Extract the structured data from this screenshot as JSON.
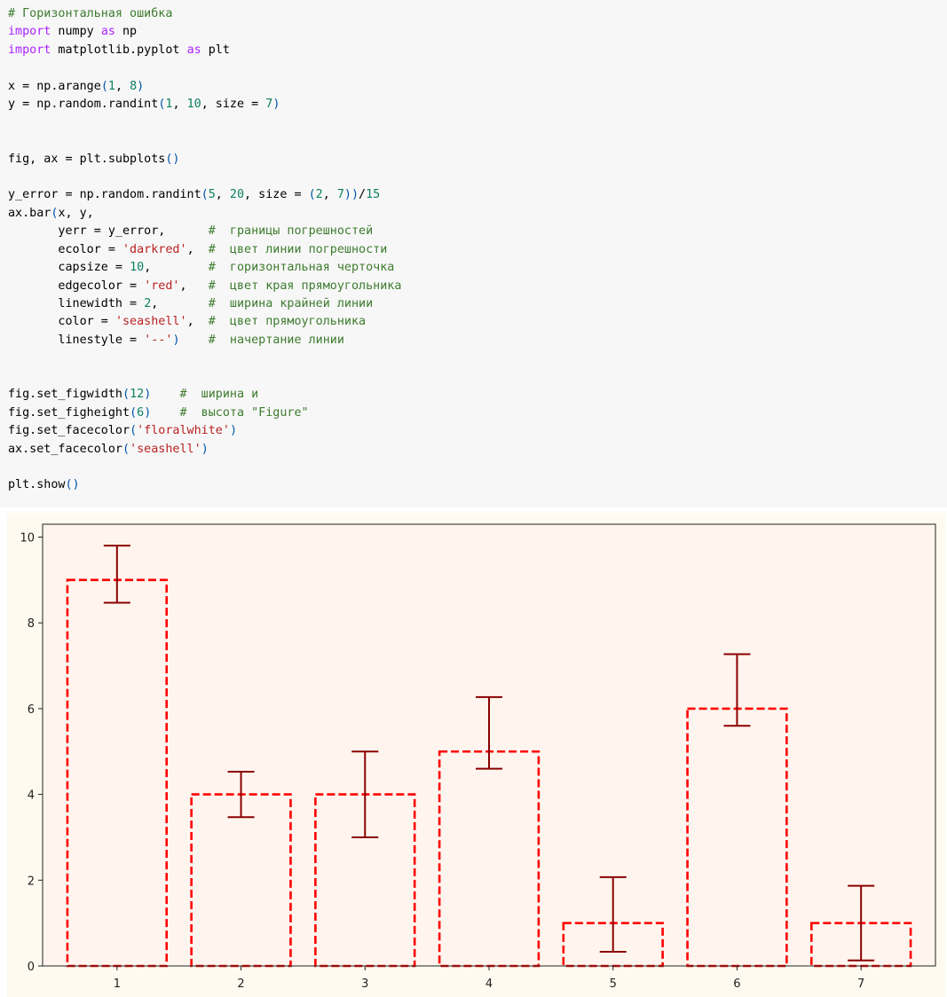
{
  "code_cell": {
    "lines": [
      [
        {
          "t": "# Горизонтальная ошибка",
          "c": "comment"
        }
      ],
      [
        {
          "t": "import",
          "c": "keyword"
        },
        {
          "t": " numpy ",
          "c": "plain"
        },
        {
          "t": "as",
          "c": "keyword"
        },
        {
          "t": " np",
          "c": "plain"
        }
      ],
      [
        {
          "t": "import",
          "c": "keyword"
        },
        {
          "t": " matplotlib.pyplot ",
          "c": "plain"
        },
        {
          "t": "as",
          "c": "keyword"
        },
        {
          "t": " plt",
          "c": "plain"
        }
      ],
      [],
      [
        {
          "t": "x = np.arange",
          "c": "plain"
        },
        {
          "t": "(",
          "c": "paren"
        },
        {
          "t": "1",
          "c": "number"
        },
        {
          "t": ", ",
          "c": "plain"
        },
        {
          "t": "8",
          "c": "number"
        },
        {
          "t": ")",
          "c": "paren"
        }
      ],
      [
        {
          "t": "y = np.random.randint",
          "c": "plain"
        },
        {
          "t": "(",
          "c": "paren"
        },
        {
          "t": "1",
          "c": "number"
        },
        {
          "t": ", ",
          "c": "plain"
        },
        {
          "t": "10",
          "c": "number"
        },
        {
          "t": ", size = ",
          "c": "plain"
        },
        {
          "t": "7",
          "c": "number"
        },
        {
          "t": ")",
          "c": "paren"
        }
      ],
      [],
      [],
      [
        {
          "t": "fig, ax = plt.subplots",
          "c": "plain"
        },
        {
          "t": "()",
          "c": "paren"
        }
      ],
      [],
      [
        {
          "t": "y_error = np.random.randint",
          "c": "plain"
        },
        {
          "t": "(",
          "c": "paren"
        },
        {
          "t": "5",
          "c": "number"
        },
        {
          "t": ", ",
          "c": "plain"
        },
        {
          "t": "20",
          "c": "number"
        },
        {
          "t": ", size = ",
          "c": "plain"
        },
        {
          "t": "(",
          "c": "paren"
        },
        {
          "t": "2",
          "c": "number"
        },
        {
          "t": ", ",
          "c": "plain"
        },
        {
          "t": "7",
          "c": "number"
        },
        {
          "t": "))",
          "c": "paren"
        },
        {
          "t": "/",
          "c": "plain"
        },
        {
          "t": "15",
          "c": "number"
        }
      ],
      [
        {
          "t": "ax.bar",
          "c": "plain"
        },
        {
          "t": "(",
          "c": "paren"
        },
        {
          "t": "x, y,",
          "c": "plain"
        }
      ],
      [
        {
          "t": "       yerr = y_error,      ",
          "c": "plain"
        },
        {
          "t": "#  границы погрешностей",
          "c": "comment"
        }
      ],
      [
        {
          "t": "       ecolor = ",
          "c": "plain"
        },
        {
          "t": "'darkred'",
          "c": "string"
        },
        {
          "t": ",  ",
          "c": "plain"
        },
        {
          "t": "#  цвет линии погрешности",
          "c": "comment"
        }
      ],
      [
        {
          "t": "       capsize = ",
          "c": "plain"
        },
        {
          "t": "10",
          "c": "number"
        },
        {
          "t": ",        ",
          "c": "plain"
        },
        {
          "t": "#  горизонтальная черточка",
          "c": "comment"
        }
      ],
      [
        {
          "t": "       edgecolor = ",
          "c": "plain"
        },
        {
          "t": "'red'",
          "c": "string"
        },
        {
          "t": ",   ",
          "c": "plain"
        },
        {
          "t": "#  цвет края прямоугольника",
          "c": "comment"
        }
      ],
      [
        {
          "t": "       linewidth = ",
          "c": "plain"
        },
        {
          "t": "2",
          "c": "number"
        },
        {
          "t": ",       ",
          "c": "plain"
        },
        {
          "t": "#  ширина крайней линии",
          "c": "comment"
        }
      ],
      [
        {
          "t": "       color = ",
          "c": "plain"
        },
        {
          "t": "'seashell'",
          "c": "string"
        },
        {
          "t": ",  ",
          "c": "plain"
        },
        {
          "t": "#  цвет прямоугольника",
          "c": "comment"
        }
      ],
      [
        {
          "t": "       linestyle = ",
          "c": "plain"
        },
        {
          "t": "'--'",
          "c": "string"
        },
        {
          "t": ")",
          "c": "paren"
        },
        {
          "t": "    ",
          "c": "plain"
        },
        {
          "t": "#  начертание линии",
          "c": "comment"
        }
      ],
      [],
      [],
      [
        {
          "t": "fig.set_figwidth",
          "c": "plain"
        },
        {
          "t": "(",
          "c": "paren"
        },
        {
          "t": "12",
          "c": "number"
        },
        {
          "t": ")",
          "c": "paren"
        },
        {
          "t": "    ",
          "c": "plain"
        },
        {
          "t": "#  ширина и",
          "c": "comment"
        }
      ],
      [
        {
          "t": "fig.set_figheight",
          "c": "plain"
        },
        {
          "t": "(",
          "c": "paren"
        },
        {
          "t": "6",
          "c": "number"
        },
        {
          "t": ")",
          "c": "paren"
        },
        {
          "t": "    ",
          "c": "plain"
        },
        {
          "t": "#  высота \"Figure\"",
          "c": "comment"
        }
      ],
      [
        {
          "t": "fig.set_facecolor",
          "c": "plain"
        },
        {
          "t": "(",
          "c": "paren"
        },
        {
          "t": "'floralwhite'",
          "c": "string"
        },
        {
          "t": ")",
          "c": "paren"
        }
      ],
      [
        {
          "t": "ax.set_facecolor",
          "c": "plain"
        },
        {
          "t": "(",
          "c": "paren"
        },
        {
          "t": "'seashell'",
          "c": "string"
        },
        {
          "t": ")",
          "c": "paren"
        }
      ],
      [],
      [
        {
          "t": "plt.show",
          "c": "plain"
        },
        {
          "t": "()",
          "c": "paren"
        }
      ]
    ]
  },
  "colors": {
    "figure_face": "#fffaf0",
    "axes_face": "#fff5ee",
    "bar_edge": "#ff0000",
    "error_bar": "#8b0000",
    "axis": "#222222"
  },
  "chart_data": {
    "type": "bar",
    "x": [
      1,
      2,
      3,
      4,
      5,
      6,
      7
    ],
    "values": [
      9,
      4,
      4,
      5,
      1,
      6,
      1
    ],
    "error_lower": [
      0.53,
      0.53,
      1.0,
      0.4,
      0.67,
      0.4,
      0.87
    ],
    "error_upper": [
      0.8,
      0.53,
      1.0,
      1.27,
      1.07,
      1.27,
      0.87
    ],
    "xticks": [
      "1",
      "2",
      "3",
      "4",
      "5",
      "6",
      "7"
    ],
    "yticks": [
      0,
      2,
      4,
      6,
      8,
      10
    ],
    "xlim": [
      0.4,
      7.6
    ],
    "ylim": [
      0,
      10.3
    ],
    "bar_width": 0.8,
    "edge_linestyle": "dashed",
    "grid": false,
    "title": "",
    "xlabel": "",
    "ylabel": ""
  }
}
